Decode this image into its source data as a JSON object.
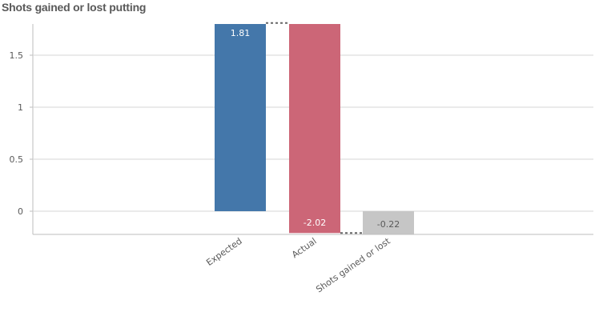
{
  "chart_data": {
    "type": "bar",
    "title": "Shots gained or lost putting",
    "xlabel": "",
    "ylabel": "",
    "categories": [
      "Expected",
      "Actual",
      "Shots gained or lost"
    ],
    "series": [
      {
        "values": [
          1.81,
          -2.02,
          -0.22
        ]
      }
    ],
    "waterfall": [
      {
        "category": "Expected",
        "start": 0,
        "end": 1.81,
        "label": "1.81",
        "color": "#4477aa"
      },
      {
        "category": "Actual",
        "start": 1.81,
        "end": -0.21,
        "label": "-2.02",
        "color": "#cc6677"
      },
      {
        "category": "Shots gained or lost",
        "start": 0,
        "end": -0.22,
        "label": "-0.22",
        "color": "#c6c6c6"
      }
    ],
    "yticks": [
      0,
      0.5,
      1,
      1.5
    ],
    "ytick_labels": [
      "0",
      "0.5",
      "1",
      "1.5"
    ],
    "ylim": [
      -0.22,
      1.81
    ],
    "grid": true,
    "legend": "none"
  }
}
